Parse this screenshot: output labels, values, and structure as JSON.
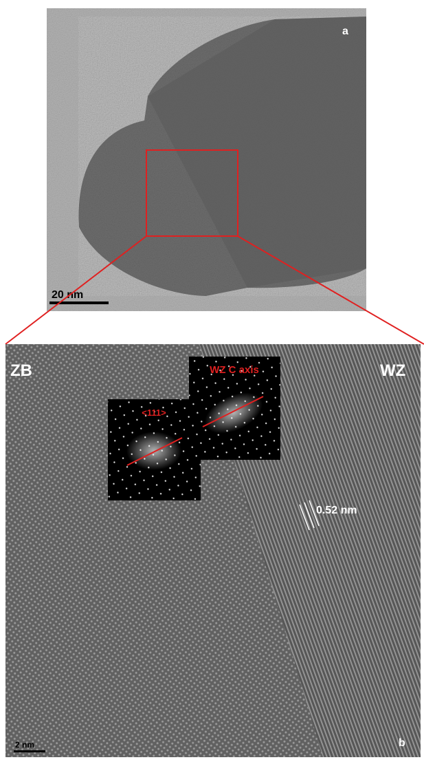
{
  "panel_a": {
    "label": "a",
    "scale_bar": "20 nm"
  },
  "panel_b": {
    "label": "b",
    "scale_bar": "2 nm",
    "phase_left": "ZB",
    "phase_right": "WZ",
    "inset_left": "<111>",
    "inset_right": "WZ C axis",
    "spacing": "0.52 nm"
  }
}
